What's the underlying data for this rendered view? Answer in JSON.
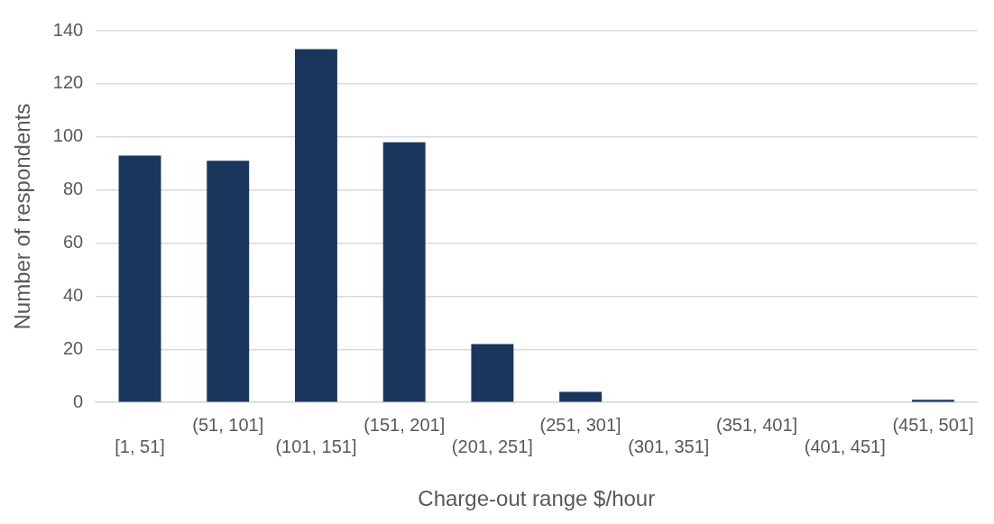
{
  "chart_data": {
    "type": "bar",
    "xlabel": "Charge-out range $/hour",
    "ylabel": "Number of respondents",
    "categories": [
      "[1, 51]",
      "(51, 101]",
      "(101, 151]",
      "(151, 201]",
      "(201, 251]",
      "(251, 301]",
      "(301, 351]",
      "(351, 401]",
      "(401, 451]",
      "(451, 501]"
    ],
    "values": [
      93,
      91,
      133,
      98,
      22,
      4,
      0,
      0,
      0,
      1
    ],
    "color": "#1b365d",
    "ylim": [
      0,
      140
    ],
    "yticks": [
      0,
      20,
      40,
      60,
      80,
      100,
      120,
      140
    ],
    "grid": "y",
    "legend": false
  }
}
